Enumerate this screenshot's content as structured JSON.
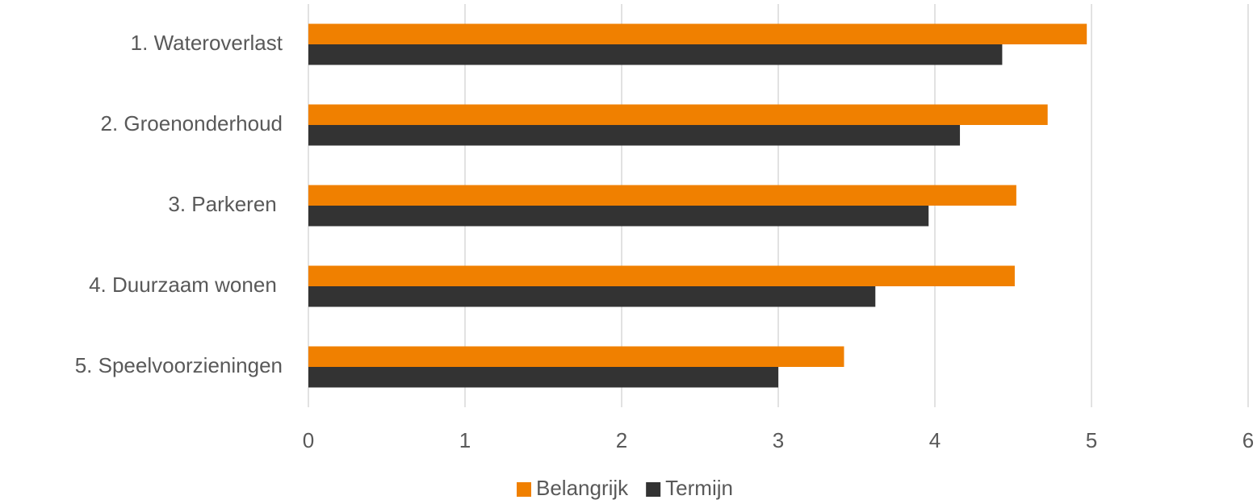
{
  "chart_data": {
    "type": "hbar",
    "categories": [
      "1. Wateroverlast",
      "2. Groenonderhoud",
      "3. Parkeren ",
      "4. Duurzaam wonen ",
      "5. Speelvoorzieningen"
    ],
    "series": [
      {
        "name": "Belangrijk",
        "color": "#f08000",
        "values": [
          4.97,
          4.72,
          4.52,
          4.51,
          3.42
        ]
      },
      {
        "name": "Termijn",
        "color": "#333333",
        "values": [
          4.43,
          4.16,
          3.96,
          3.62,
          3.0
        ]
      }
    ],
    "xlim": [
      0,
      6
    ],
    "xticks": [
      0,
      1,
      2,
      3,
      4,
      5,
      6
    ],
    "grid": true,
    "legend": "bottom"
  }
}
